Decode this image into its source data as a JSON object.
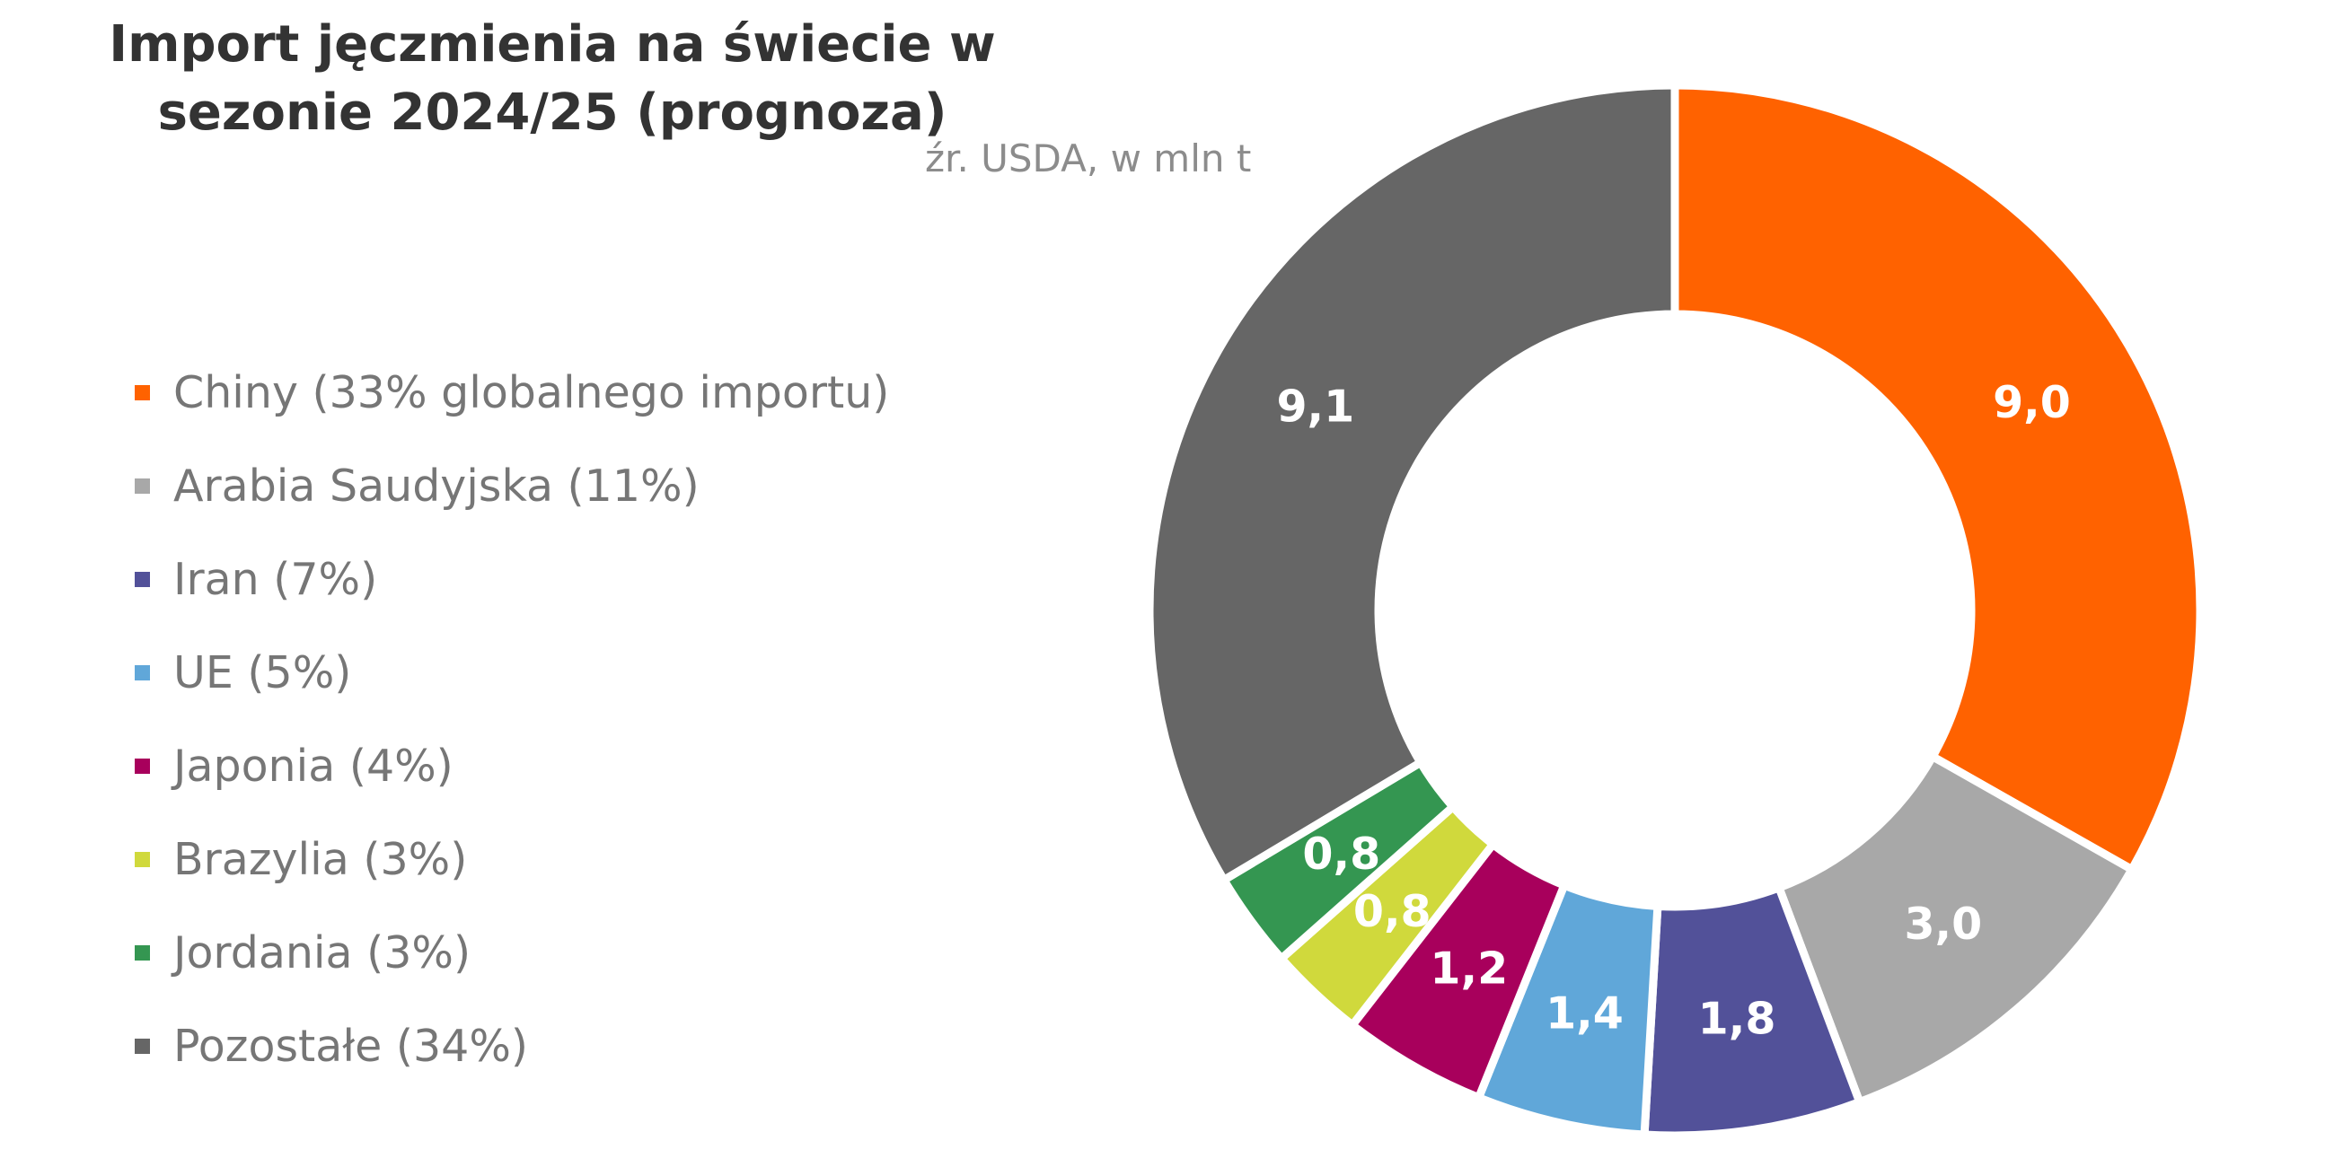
{
  "chart_data": {
    "type": "pie",
    "title": "Import jęczmienia na świecie w sezonie 2024/25 (prognoza)",
    "subtitle": "źr. USDA, w mln t",
    "legend_position": "left",
    "categories": [
      "Chiny (33% globalnego importu)",
      "Arabia Saudyjska (11%)",
      "Iran (7%)",
      "UE (5%)",
      "Japonia (4%)",
      "Brazylia (3%)",
      "Jordania (3%)",
      "Pozostałe (34%)"
    ],
    "values": [
      9.0,
      3.0,
      1.8,
      1.4,
      1.2,
      0.8,
      0.8,
      9.1
    ],
    "data_labels": [
      "9,0",
      "3,0",
      "1,8",
      "1,4",
      "1,2",
      "0,8",
      "0,8",
      "9,1"
    ],
    "colors": [
      "#ff6200",
      "#a8a8a8",
      "#525199",
      "#60a7d9",
      "#a8005c",
      "#d0d93c",
      "#349651",
      "#666666"
    ]
  }
}
